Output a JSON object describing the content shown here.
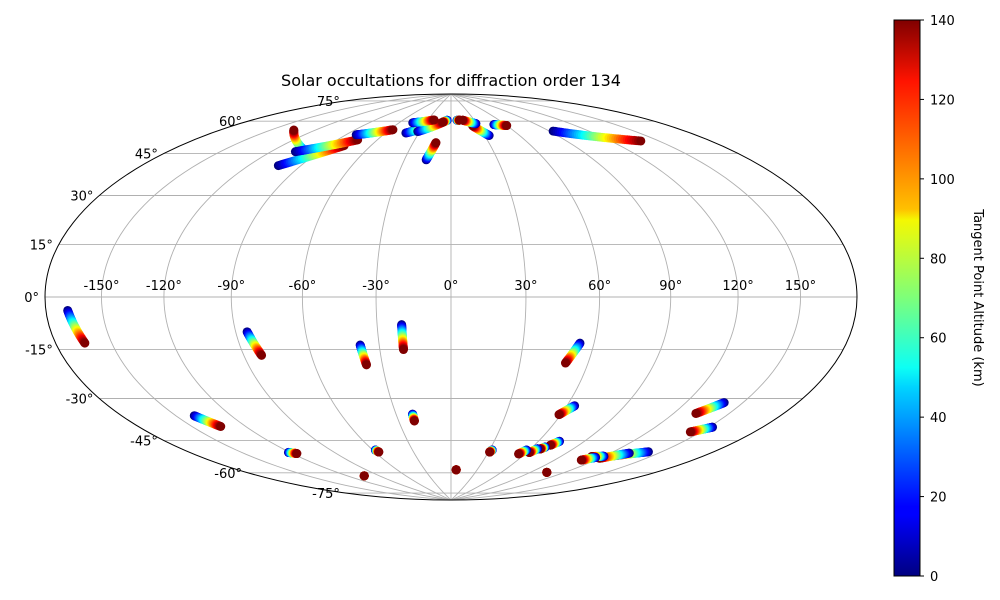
{
  "chart_data": {
    "type": "scatter",
    "projection": "hammer",
    "title": "Solar occultations for diffraction order 134",
    "longitude_ticks": [
      -150,
      -120,
      -90,
      -60,
      -30,
      0,
      30,
      60,
      90,
      120,
      150
    ],
    "longitude_tick_labels": [
      "-150°",
      "-120°",
      "-90°",
      "-60°",
      "-30°",
      "0°",
      "30°",
      "60°",
      "90°",
      "120°",
      "150°"
    ],
    "latitude_ticks": [
      -75,
      -60,
      -45,
      -30,
      -15,
      0,
      15,
      30,
      45,
      60,
      75
    ],
    "latitude_tick_labels": [
      "-75°",
      "-60°",
      "-45°",
      "-30°",
      "-15°",
      "0°",
      "15°",
      "30°",
      "45°",
      "60°",
      "75°"
    ],
    "grid": true,
    "colorbar": {
      "label": "Tangent Point Altitude (km)",
      "range": [
        0,
        140
      ],
      "ticks": [
        0,
        20,
        40,
        60,
        80,
        100,
        120,
        140
      ],
      "tick_labels": [
        "0",
        "20",
        "40",
        "60",
        "80",
        "100",
        "120",
        "140"
      ],
      "colormap": "jet"
    },
    "tracks": [
      {
        "lon_start": -168,
        "lat_start": -4,
        "lon_end": -164,
        "lat_end": -14
      },
      {
        "lon_start": -85,
        "lat_start": -13,
        "lon_end": -82,
        "lat_end": -22
      },
      {
        "lon_start": -38,
        "lat_start": -19,
        "lon_end": -37,
        "lat_end": -27
      },
      {
        "lon_start": -20,
        "lat_start": -11,
        "lon_end": -20,
        "lat_end": -21
      },
      {
        "lon_start": 54,
        "lat_start": -18,
        "lon_end": 50,
        "lat_end": -26
      },
      {
        "lon_start": -140,
        "lat_start": -41,
        "lon_end": -134,
        "lat_end": -46
      },
      {
        "lon_start": 64,
        "lat_start": -43,
        "lon_end": 59,
        "lat_end": -47
      },
      {
        "lon_start": 140,
        "lat_start": -36,
        "lon_end": 132,
        "lat_end": -41
      },
      {
        "lon_start": 152,
        "lat_start": -44,
        "lon_end": 144,
        "lat_end": -47
      },
      {
        "lon_start": -21,
        "lat_start": -48,
        "lon_end": -21,
        "lat_end": -51
      },
      {
        "lon_start": -121,
        "lat_start": -59,
        "lon_end": -117,
        "lat_end": -60
      },
      {
        "lon_start": -58,
        "lat_start": -63,
        "lon_end": -57,
        "lat_end": -64
      },
      {
        "lon_start": 32,
        "lat_start": -64,
        "lon_end": 31,
        "lat_end": -65
      },
      {
        "lon_start": 74,
        "lat_start": -58,
        "lon_end": 71,
        "lat_end": -60
      },
      {
        "lon_start": 69,
        "lat_start": -61,
        "lon_end": 67,
        "lat_end": -62
      },
      {
        "lon_start": 65,
        "lat_start": -62,
        "lon_end": 62,
        "lat_end": -64
      },
      {
        "lon_start": 58,
        "lat_start": -63,
        "lon_end": 55,
        "lat_end": -65
      },
      {
        "lon_start": 142,
        "lat_start": -56,
        "lon_end": 126,
        "lat_end": -60
      },
      {
        "lon_start": 132,
        "lat_start": -58,
        "lon_end": 120,
        "lat_end": -62
      },
      {
        "lon_start": 120,
        "lat_start": -61,
        "lon_end": 112,
        "lat_end": -62
      },
      {
        "lon_start": 116,
        "lat_start": -62,
        "lon_end": 110,
        "lat_end": -64
      },
      {
        "lon_start": -105,
        "lat_start": -73,
        "lon_end": -105,
        "lat_end": -73
      },
      {
        "lon_start": 6,
        "lat_start": -74,
        "lon_end": 6,
        "lat_end": -74
      },
      {
        "lon_start": 105,
        "lat_start": -71,
        "lon_end": 105,
        "lat_end": -71
      },
      {
        "lon_start": -95,
        "lat_start": 56,
        "lon_end": -135,
        "lat_end": 63
      },
      {
        "lon_start": -103,
        "lat_start": 50,
        "lon_end": -79,
        "lat_end": 61
      },
      {
        "lon_start": -105,
        "lat_start": 56,
        "lon_end": -75,
        "lat_end": 64
      },
      {
        "lon_start": -82,
        "lat_start": 66,
        "lon_end": -57,
        "lat_end": 70
      },
      {
        "lon_start": -42,
        "lat_start": 69,
        "lon_end": -22,
        "lat_end": 73
      },
      {
        "lon_start": -32,
        "lat_start": 70,
        "lon_end": -10,
        "lat_end": 75
      },
      {
        "lon_start": -16,
        "lat_start": 57,
        "lon_end": -12,
        "lat_end": 65
      },
      {
        "lon_start": -45,
        "lat_start": 74,
        "lon_end": -22,
        "lat_end": 76
      },
      {
        "lon_start": -5,
        "lat_start": 76,
        "lon_end": -10,
        "lat_end": 75
      },
      {
        "lon_start": 8,
        "lat_start": 76,
        "lon_end": 11,
        "lat_end": 76
      },
      {
        "lon_start": 34,
        "lat_start": 68,
        "lon_end": 24,
        "lat_end": 73
      },
      {
        "lon_start": 48,
        "lat_start": 73,
        "lon_end": 60,
        "lat_end": 72
      },
      {
        "lon_start": 29,
        "lat_start": 74,
        "lon_end": 15,
        "lat_end": 76
      },
      {
        "lon_start": 93,
        "lat_start": 67,
        "lon_end": 139,
        "lat_end": 57
      }
    ]
  }
}
